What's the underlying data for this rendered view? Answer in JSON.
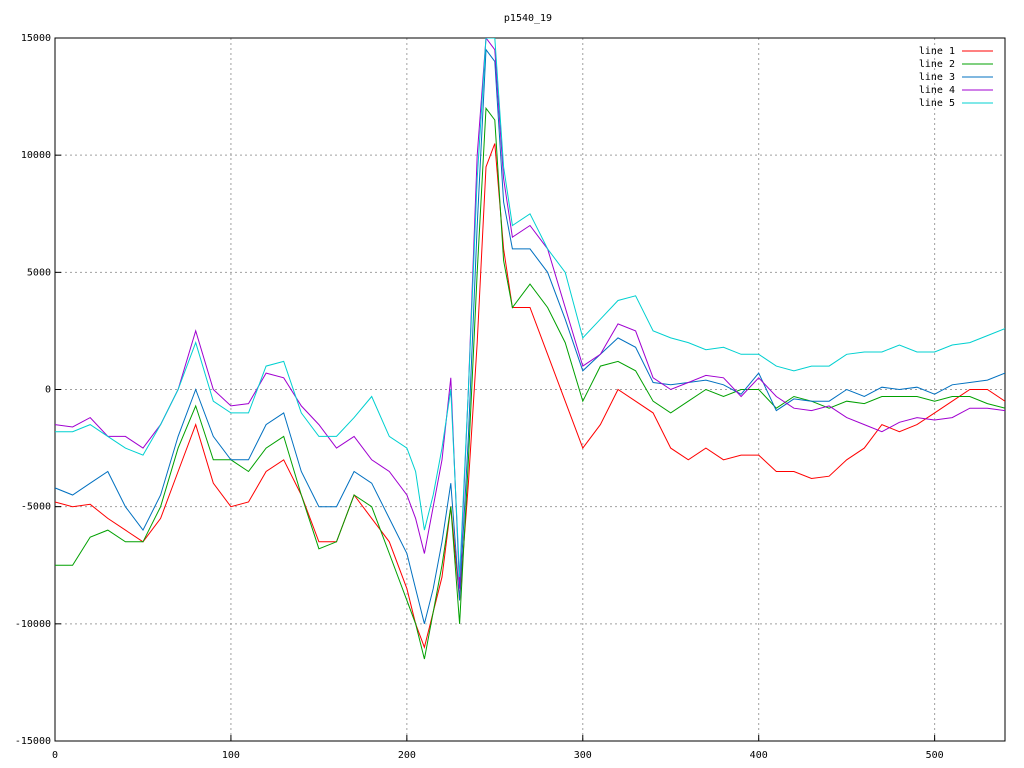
{
  "chart_data": {
    "type": "line",
    "title": "p1540_19",
    "x": [
      0,
      10,
      20,
      30,
      40,
      50,
      60,
      70,
      80,
      90,
      100,
      110,
      120,
      130,
      140,
      150,
      160,
      170,
      180,
      190,
      200,
      205,
      210,
      215,
      220,
      225,
      230,
      235,
      240,
      245,
      250,
      255,
      260,
      270,
      280,
      290,
      300,
      310,
      320,
      330,
      340,
      350,
      360,
      370,
      380,
      390,
      400,
      410,
      420,
      430,
      440,
      450,
      460,
      470,
      480,
      490,
      500,
      510,
      520,
      530,
      540
    ],
    "series": [
      {
        "name": "line 1",
        "color": "#ff0000",
        "values": [
          -4800,
          -5000,
          -4900,
          -5500,
          -6000,
          -6500,
          -5500,
          -3500,
          -1500,
          -4000,
          -5000,
          -4800,
          -3500,
          -3000,
          -4500,
          -6500,
          -6500,
          -4500,
          -5500,
          -6500,
          -8500,
          -10000,
          -11000,
          -9500,
          -8000,
          -5000,
          -9000,
          -4000,
          2000,
          9500,
          10500,
          6000,
          3500,
          3500,
          1500,
          -500,
          -2500,
          -1500,
          0,
          -500,
          -1000,
          -2500,
          -3000,
          -2500,
          -3000,
          -2800,
          -2800,
          -3500,
          -3500,
          -3800,
          -3700,
          -3000,
          -2500,
          -1500,
          -1800,
          -1500,
          -1000,
          -500,
          0,
          0,
          -500
        ]
      },
      {
        "name": "line 2",
        "color": "#00a000",
        "values": [
          -7500,
          -7500,
          -6300,
          -6000,
          -6500,
          -6500,
          -5000,
          -2500,
          -700,
          -3000,
          -3000,
          -3500,
          -2500,
          -2000,
          -4500,
          -6800,
          -6500,
          -4500,
          -5000,
          -7000,
          -9000,
          -10000,
          -11500,
          -9500,
          -7500,
          -5000,
          -10000,
          -3000,
          5000,
          12000,
          11500,
          5500,
          3500,
          4500,
          3500,
          2000,
          -500,
          1000,
          1200,
          800,
          -500,
          -1000,
          -500,
          0,
          -300,
          0,
          0,
          -800,
          -300,
          -500,
          -800,
          -500,
          -600,
          -300,
          -300,
          -300,
          -500,
          -300,
          -300,
          -600,
          -800
        ]
      },
      {
        "name": "line 3",
        "color": "#0070c0",
        "values": [
          -4200,
          -4500,
          -4000,
          -3500,
          -5000,
          -6000,
          -4500,
          -2000,
          0,
          -2000,
          -3000,
          -3000,
          -1500,
          -1000,
          -3500,
          -5000,
          -5000,
          -3500,
          -4000,
          -5500,
          -7000,
          -8500,
          -10000,
          -8500,
          -6500,
          -4000,
          -9000,
          -2000,
          7000,
          14500,
          14000,
          8000,
          6000,
          6000,
          5000,
          3000,
          800,
          1500,
          2200,
          1800,
          300,
          200,
          300,
          400,
          200,
          -200,
          700,
          -900,
          -400,
          -500,
          -500,
          0,
          -300,
          100,
          0,
          100,
          -200,
          200,
          300,
          400,
          700
        ]
      },
      {
        "name": "line 4",
        "color": "#a000d0",
        "values": [
          -1500,
          -1600,
          -1200,
          -2000,
          -2000,
          -2500,
          -1500,
          0,
          2500,
          0,
          -700,
          -600,
          700,
          500,
          -700,
          -1500,
          -2500,
          -2000,
          -3000,
          -3500,
          -4500,
          -5500,
          -7000,
          -5000,
          -3000,
          500,
          -8500,
          0,
          10000,
          15000,
          14500,
          9000,
          6500,
          7000,
          6000,
          3500,
          1000,
          1500,
          2800,
          2500,
          500,
          0,
          300,
          600,
          500,
          -300,
          500,
          -300,
          -800,
          -900,
          -700,
          -1200,
          -1500,
          -1800,
          -1400,
          -1200,
          -1300,
          -1200,
          -800,
          -800,
          -900
        ]
      },
      {
        "name": "line 5",
        "color": "#00d0d0",
        "values": [
          -1800,
          -1800,
          -1500,
          -2000,
          -2500,
          -2800,
          -1500,
          0,
          2000,
          -500,
          -1000,
          -1000,
          1000,
          1200,
          -1000,
          -2000,
          -2000,
          -1200,
          -300,
          -2000,
          -2500,
          -3500,
          -6000,
          -4500,
          -2500,
          0,
          -8000,
          0,
          9000,
          15000,
          15000,
          9500,
          7000,
          7500,
          6000,
          5000,
          2200,
          3000,
          3800,
          4000,
          2500,
          2200,
          2000,
          1700,
          1800,
          1500,
          1500,
          1000,
          800,
          1000,
          1000,
          1500,
          1600,
          1600,
          1900,
          1600,
          1600,
          1900,
          2000,
          2300,
          2600
        ]
      }
    ],
    "xlim": [
      0,
      540
    ],
    "ylim": [
      -15000,
      15000
    ],
    "xticks": [
      0,
      100,
      200,
      300,
      400,
      500
    ],
    "yticks": [
      -15000,
      -10000,
      -5000,
      0,
      5000,
      10000,
      15000
    ],
    "grid": true,
    "legend": "top-right"
  }
}
